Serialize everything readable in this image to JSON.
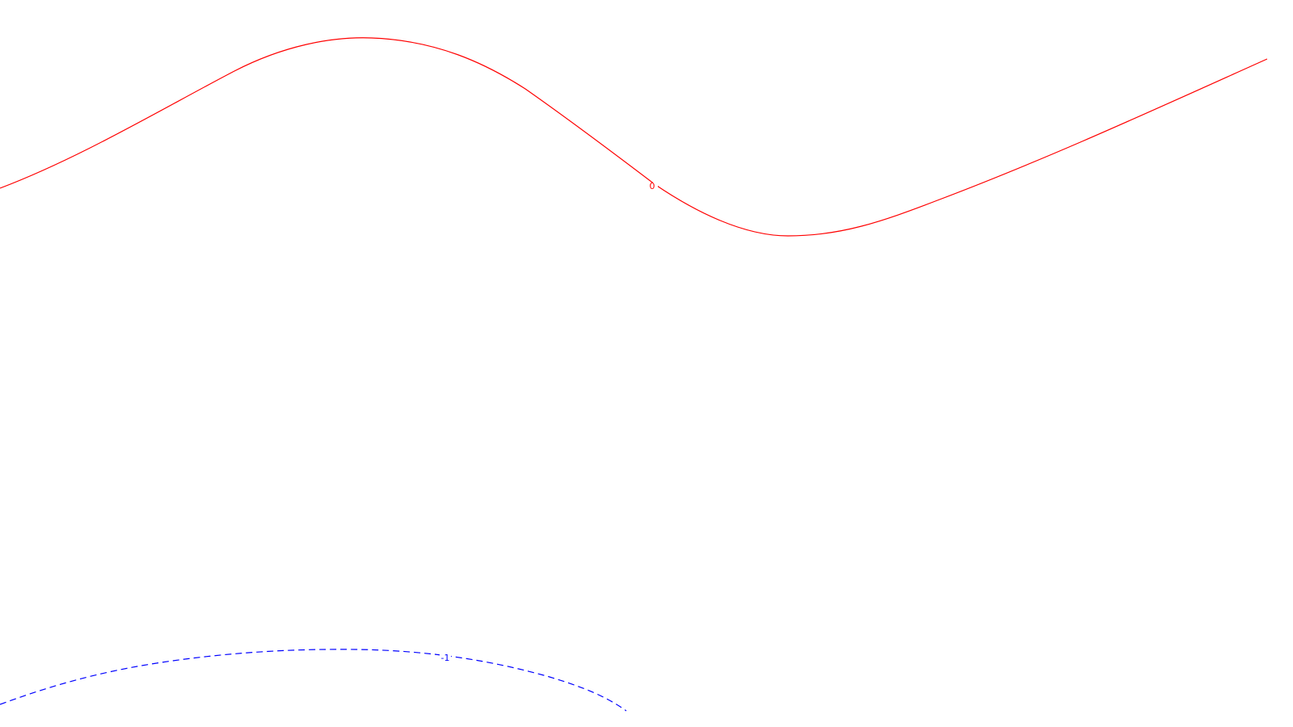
{
  "chart_data": {
    "type": "contour",
    "title": "",
    "xlabel": "",
    "ylabel": "",
    "grid": false,
    "legend": "none",
    "contours": [
      {
        "level_label": "0",
        "color": "#ff0000",
        "line_style": "solid"
      },
      {
        "level_label": "-1",
        "color": "#0000ff",
        "line_style": "dashed"
      }
    ]
  }
}
